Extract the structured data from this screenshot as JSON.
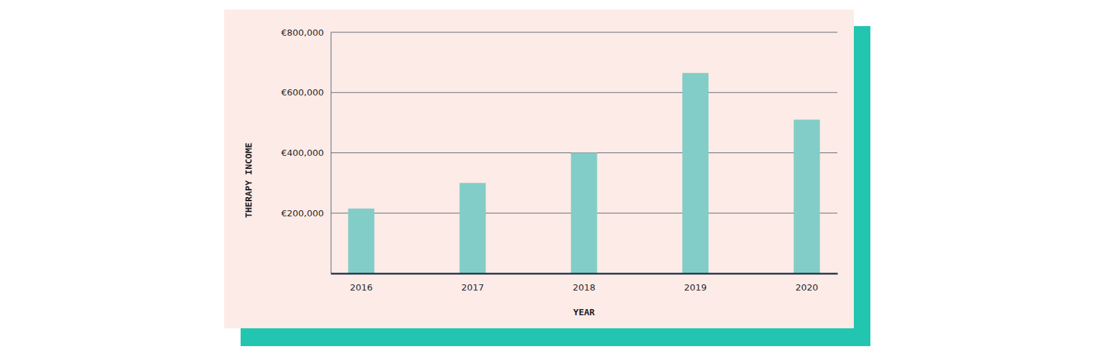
{
  "chart_data": {
    "type": "bar",
    "x_label": "YEAR",
    "y_label": "THERAPY INCOME",
    "categories": [
      "2016",
      "2017",
      "2018",
      "2019",
      "2020"
    ],
    "values": [
      215000,
      300000,
      400000,
      665000,
      510000
    ],
    "color": "#82cdc7",
    "ylim": [
      0,
      800000
    ],
    "yticks": [
      {
        "value": 200000,
        "label": "€200,000"
      },
      {
        "value": 400000,
        "label": "€400,000"
      },
      {
        "value": 600000,
        "label": "€600,000"
      },
      {
        "value": 800000,
        "label": "€800,000"
      }
    ],
    "grid": true
  }
}
